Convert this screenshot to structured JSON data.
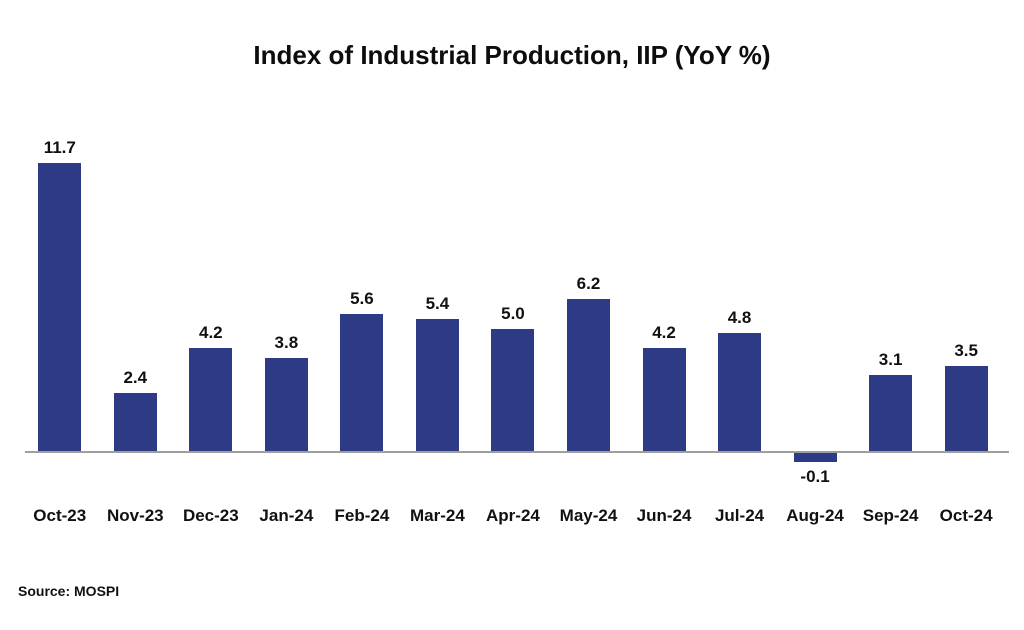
{
  "title": "Index of Industrial Production, IIP (YoY %)",
  "source_note": "Source: MOSPI",
  "chart_data": {
    "type": "bar",
    "title": "Index of Industrial Production, IIP (YoY %)",
    "categories": [
      "Oct-23",
      "Nov-23",
      "Dec-23",
      "Jan-24",
      "Feb-24",
      "Mar-24",
      "Apr-24",
      "May-24",
      "Jun-24",
      "Jul-24",
      "Aug-24",
      "Sep-24",
      "Oct-24"
    ],
    "values": [
      11.7,
      2.4,
      4.2,
      3.8,
      5.6,
      5.4,
      5.0,
      6.2,
      4.2,
      4.8,
      -0.1,
      3.1,
      3.5
    ],
    "value_labels": [
      "11.7",
      "2.4",
      "4.2",
      "3.8",
      "5.6",
      "5.4",
      "5.0",
      "6.2",
      "4.2",
      "4.8",
      "-0.1",
      "3.1",
      "3.5"
    ],
    "xlabel": "",
    "ylabel": "",
    "ylim": [
      -1,
      13
    ],
    "grid": false,
    "legend": false,
    "data_labels": true,
    "bar_color": "#2D3A86",
    "axis_line_color": "#9E9E9E",
    "label_color": "#111111",
    "source": "Source: MOSPI"
  }
}
